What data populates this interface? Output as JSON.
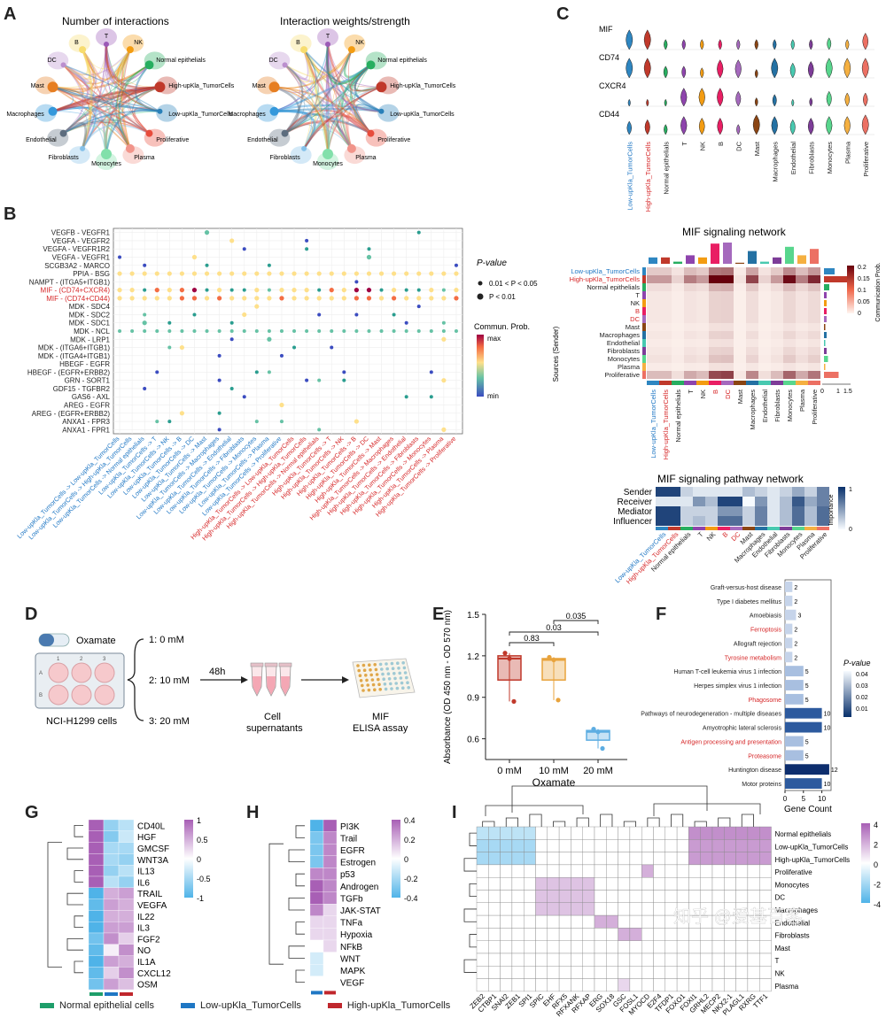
{
  "panel_letters": [
    "A",
    "B",
    "C",
    "D",
    "E",
    "F",
    "G",
    "H",
    "I"
  ],
  "panelA": {
    "titles": [
      "Number of interactions",
      "Interaction weights/strength"
    ],
    "nodes": [
      "T",
      "NK",
      "Normal epithelials",
      "High-upKla_TumorCells",
      "Low-upKla_TumorCells",
      "Proliferative",
      "Plasma",
      "Monocytes",
      "Fibroblasts",
      "Endothelial",
      "Macrophages",
      "Mast",
      "DC",
      "B"
    ],
    "node_colors": [
      "#9b59b6",
      "#f39c12",
      "#27ae60",
      "#c0392b",
      "#2980b9",
      "#e74c3c",
      "#f1948a",
      "#82e0aa",
      "#85c1e9",
      "#5d6d7e",
      "#3498db",
      "#e67e22",
      "#bb8fce",
      "#f7dc6f"
    ]
  },
  "panelB": {
    "rows": [
      "VEGFB - VEGFR1",
      "VEGFA - VEGFR2",
      "VEGFA - VEGFR1R2",
      "VEGFA - VEGFR1",
      "SCGB3A2 - MARCO",
      "PPIA - BSG",
      "NAMPT - (ITGA5+ITGB1)",
      "MIF - (CD74+CXCR4)",
      "MIF - (CD74+CD44)",
      "MDK - SDC4",
      "MDK - SDC2",
      "MDK - SDC1",
      "MDK - NCL",
      "MDK - LRP1",
      "MDK - (ITGA6+ITGB1)",
      "MDK - (ITGA4+ITGB1)",
      "HBEGF - EGFR",
      "HBEGF - (EGFR+ERBB2)",
      "GRN - SORT1",
      "GDF15 - TGFBR2",
      "GAS6 - AXL",
      "AREG - EGFR",
      "AREG - (EGFR+ERBB2)",
      "ANXA1 - FPR3",
      "ANXA1 - FPR1"
    ],
    "red_rows": [
      "MIF - (CD74+CXCR4)",
      "MIF - (CD74+CD44)"
    ],
    "cols": [
      "Low-upKla_TumorCells -> Low-upKla_TumorCells",
      "Low-upKla_TumorCells -> High-upKla_TumorCells",
      "Low-upKla_TumorCells -> Normal epithelials",
      "Low-upKla_TumorCells -> T",
      "Low-upKla_TumorCells -> NK",
      "Low-upKla_TumorCells -> B",
      "Low-upKla_TumorCells -> DC",
      "Low-upKla_TumorCells -> Mast",
      "Low-upKla_TumorCells -> Macrophages",
      "Low-upKla_TumorCells -> Endothelial",
      "Low-upKla_TumorCells -> Fibroblasts",
      "Low-upKla_TumorCells -> Monocytes",
      "Low-upKla_TumorCells -> Plasma",
      "Low-upKla_TumorCells -> Proliferative",
      "High-upKla_TumorCells -> Low-upKla_TumorCells",
      "High-upKla_TumorCells -> High-upKla_TumorCells",
      "High-upKla_TumorCells -> Normal epithelials",
      "High-upKla_TumorCells -> T",
      "High-upKla_TumorCells -> NK",
      "High-upKla_TumorCells -> B",
      "High-upKla_TumorCells -> DC",
      "High-upKla_TumorCells -> Mast",
      "High-upKla_TumorCells -> Macrophages",
      "High-upKla_TumorCells -> Endothelial",
      "High-upKla_TumorCells -> Fibroblasts",
      "High-upKla_TumorCells -> Monocytes",
      "High-upKla_TumorCells -> Plasma",
      "High-upKla_TumorCells -> Proliferative"
    ],
    "pvalue_title": "P-value",
    "pvalue_items": [
      "0.01 < P < 0.05",
      "P < 0.01"
    ],
    "prob_title": "Commun. Prob.",
    "prob_max": "max",
    "prob_min": "min"
  },
  "panelC": {
    "genes": [
      "MIF",
      "CD74",
      "CXCR4",
      "CD44"
    ],
    "cells": [
      "Low-upKla_TumorCells",
      "High-upKla_TumorCells",
      "Normal epithelials",
      "T",
      "NK",
      "B",
      "DC",
      "Mast",
      "Macrophages",
      "Endothelial",
      "Fibroblasts",
      "Monocytes",
      "Plasma",
      "Proliferative"
    ],
    "cell_colors": [
      "#2e86c1",
      "#c0392b",
      "#27ae60",
      "#8e44ad",
      "#f39c12",
      "#e91e63",
      "#a569bd",
      "#8b4513",
      "#2471a3",
      "#48c9b0",
      "#7d3c98",
      "#58d68d",
      "#f5b041",
      "#ec7063"
    ],
    "expr": [
      [
        0.9,
        0.9,
        0.3,
        0.3,
        0.3,
        0.3,
        0.3,
        0.3,
        0.3,
        0.3,
        0.3,
        0.4,
        0.3,
        0.7
      ],
      [
        0.9,
        0.9,
        0.4,
        0.4,
        0.3,
        0.8,
        0.8,
        0.2,
        0.9,
        0.6,
        0.7,
        0.9,
        0.9,
        0.9
      ],
      [
        0.1,
        0.1,
        0.1,
        0.8,
        0.8,
        0.8,
        0.6,
        0.2,
        0.4,
        0.1,
        0.2,
        0.6,
        0.5,
        0.5
      ],
      [
        0.5,
        0.6,
        0.3,
        0.8,
        0.7,
        0.7,
        0.3,
        0.9,
        0.8,
        0.6,
        0.7,
        0.8,
        0.8,
        0.9
      ]
    ]
  },
  "panelCnet": {
    "title": "MIF signaling network",
    "ylabel": "Sources (Sender)",
    "legend_title": "Communication Prob.",
    "legend_ticks": [
      "0.2",
      "0.15",
      "0.1",
      "0.05",
      "0"
    ],
    "bottom_axis": [
      "0",
      "1",
      "1.5"
    ],
    "red_labels": [
      "B",
      "DC",
      "High-upKla_TumorCells"
    ],
    "blue_labels": [
      "Low-upKla_TumorCells"
    ]
  },
  "panelCpath": {
    "title": "MIF signaling pathway network",
    "rows": [
      "Sender",
      "Receiver",
      "Mediator",
      "Influencer"
    ],
    "legend_title": "Importance",
    "legend_max": "1",
    "legend_min": "0",
    "values": [
      [
        0.9,
        0.9,
        0.2,
        0.1,
        0.1,
        0.1,
        0.1,
        0.3,
        0.2,
        0.1,
        0.2,
        0.4,
        0.2,
        0.6
      ],
      [
        0.1,
        0.1,
        0.1,
        0.5,
        0.3,
        0.9,
        0.9,
        0.0,
        0.5,
        0.1,
        0.3,
        0.8,
        0.4,
        0.6
      ],
      [
        0.9,
        0.9,
        0.2,
        0.2,
        0.2,
        0.5,
        0.5,
        0.2,
        0.6,
        0.1,
        0.3,
        0.7,
        0.3,
        0.7
      ],
      [
        0.9,
        0.9,
        0.2,
        0.3,
        0.2,
        0.7,
        0.7,
        0.2,
        0.6,
        0.1,
        0.3,
        0.7,
        0.3,
        0.7
      ]
    ]
  },
  "panelD": {
    "drug": "Oxamate",
    "doses": [
      "1: 0 mM",
      "2: 10 mM",
      "3: 20 mM"
    ],
    "time": "48h",
    "cells": "NCI-H1299 cells",
    "supernatant": "Cell supernatants",
    "assay": "MIF ELISA assay",
    "plate_cols": [
      "1",
      "2",
      "3"
    ],
    "plate_rows": [
      "A",
      "B"
    ]
  },
  "chart_data": [
    {
      "type": "box",
      "panel": "E",
      "categories": [
        "0 mM",
        "10 mM",
        "20 mM"
      ],
      "xlabel": "Oxamate",
      "ylabel": "Absorbance (OD 450 nm - OD 570 nm)",
      "ylim": [
        0.45,
        1.5
      ],
      "yticks": [
        0.6,
        0.9,
        1.2,
        1.5
      ],
      "points": [
        [
          1.22,
          1.18,
          0.87
        ],
        [
          1.19,
          1.17,
          0.88
        ],
        [
          0.67,
          0.65,
          0.53
        ]
      ],
      "brackets": [
        {
          "from": "0 mM",
          "to": "10 mM",
          "label": "0.83"
        },
        {
          "from": "0 mM",
          "to": "20 mM",
          "label": "0.03"
        },
        {
          "from": "10 mM",
          "to": "20 mM",
          "label": "0.035"
        }
      ],
      "colors": [
        "#c0392b",
        "#e8a33d",
        "#5dade2"
      ]
    },
    {
      "type": "bar",
      "panel": "F",
      "categories": [
        "Graft-versus-host disease",
        "Type I diabetes mellitus",
        "Amoebiasis",
        "Ferroptosis",
        "Allograft rejection",
        "Tyrosine metabolism",
        "Human T-cell leukemia virus 1 infection",
        "Herpes simplex virus 1 infection",
        "Phagosome",
        "Pathways of neurodegeneration - multiple diseases",
        "Amyotrophic lateral sclerosis",
        "Antigen processing and presentation",
        "Proteasome",
        "Huntington disease",
        "Motor proteins"
      ],
      "values": [
        2,
        2,
        3,
        2,
        2,
        2,
        5,
        5,
        5,
        10,
        10,
        5,
        5,
        12,
        10
      ],
      "red_categories": [
        "Ferroptosis",
        "Tyrosine metabolism",
        "Phagosome",
        "Antigen processing and presentation",
        "Proteasome"
      ],
      "xlabel": "Gene Count",
      "xticks": [
        0,
        5,
        10
      ],
      "legend_title": "P-value",
      "legend_ticks": [
        "0.04",
        "0.03",
        "0.02",
        "0.01"
      ]
    },
    {
      "type": "heatmap",
      "panel": "G",
      "rows": [
        "CD40L",
        "HGF",
        "GMCSF",
        "WNT3A",
        "IL13",
        "IL6",
        "TRAIL",
        "VEGFA",
        "IL22",
        "IL3",
        "FGF2",
        "NO",
        "IL1A",
        "CXCL12",
        "OSM"
      ],
      "columns": [
        "Normal epithelial cells",
        "Low-upKla_TumorCells",
        "High-upKla_TumorCells"
      ],
      "values": [
        [
          1,
          -0.6,
          -0.4
        ],
        [
          1,
          -0.7,
          -0.3
        ],
        [
          1,
          -0.5,
          -0.5
        ],
        [
          1,
          -0.5,
          -0.6
        ],
        [
          1,
          -0.6,
          -0.4
        ],
        [
          1,
          -0.4,
          -0.6
        ],
        [
          -1,
          0.5,
          0.6
        ],
        [
          -0.9,
          0.6,
          0.5
        ],
        [
          -1,
          0.5,
          0.5
        ],
        [
          -1,
          0.6,
          0.6
        ],
        [
          -0.8,
          0.7,
          0.3
        ],
        [
          -0.9,
          0.1,
          0.7
        ],
        [
          -1,
          0.6,
          0.5
        ],
        [
          -0.9,
          0.3,
          0.7
        ],
        [
          -0.8,
          0.6,
          0.4
        ]
      ],
      "scale_ticks": [
        "1",
        "0.5",
        "0",
        "-0.5",
        "-1"
      ]
    },
    {
      "type": "heatmap",
      "panel": "H",
      "rows": [
        "PI3K",
        "Trail",
        "EGFR",
        "Estrogen",
        "p53",
        "Androgen",
        "TGFb",
        "JAK-STAT",
        "TNFa",
        "Hypoxia",
        "NFkB",
        "WNT",
        "MAPK",
        "VEGF"
      ],
      "columns": [
        "Low-upKla_TumorCells",
        "High-upKla_TumorCells"
      ],
      "values": [
        [
          -0.4,
          0.4
        ],
        [
          -0.3,
          0.3
        ],
        [
          -0.3,
          0.3
        ],
        [
          -0.3,
          0.3
        ],
        [
          0.3,
          0.3
        ],
        [
          0.4,
          0.3
        ],
        [
          0.4,
          0.3
        ],
        [
          0.3,
          0.1
        ],
        [
          0.1,
          0.1
        ],
        [
          0.1,
          0.1
        ],
        [
          0.0,
          0.1
        ],
        [
          -0.1,
          0.0
        ],
        [
          -0.1,
          0.0
        ],
        [
          0.0,
          0.0
        ]
      ],
      "scale_ticks": [
        "0.4",
        "0.2",
        "0",
        "-0.2",
        "-0.4"
      ]
    },
    {
      "type": "heatmap",
      "panel": "I",
      "rows": [
        "Normal epithelials",
        "Low-upKla_TumorCells",
        "High-upKla_TumorCells",
        "Proliferative",
        "Monocytes",
        "DC",
        "Macrophages",
        "Endothelial",
        "Fibroblasts",
        "Mast",
        "T",
        "NK",
        "Plasma"
      ],
      "columns": [
        "ZEB2",
        "CTBP1",
        "SNAI2",
        "ZEB1",
        "SPI1",
        "SPIC",
        "EHF",
        "RFX5",
        "RFXANK",
        "RFXAP",
        "ERG",
        "SOX18",
        "GSC",
        "FOSL1",
        "MYOCD",
        "E2F4",
        "TFDP1",
        "FOXO1",
        "FOXI1",
        "GRHL2",
        "MECP2",
        "NKX2-1",
        "PLAGL1",
        "RXRG",
        "TTF1"
      ],
      "scale_ticks": [
        "4",
        "2",
        "0",
        "-2",
        "-4"
      ]
    }
  ],
  "bottom_legend": [
    {
      "label": "Normal epithelial cells",
      "color": "#1e9e6a"
    },
    {
      "label": "Low-upKla_TumorCells",
      "color": "#1f77c4"
    },
    {
      "label": "High-upKla_TumorCells",
      "color": "#c0272d"
    }
  ],
  "watermark": "知乎 @爱基百客"
}
